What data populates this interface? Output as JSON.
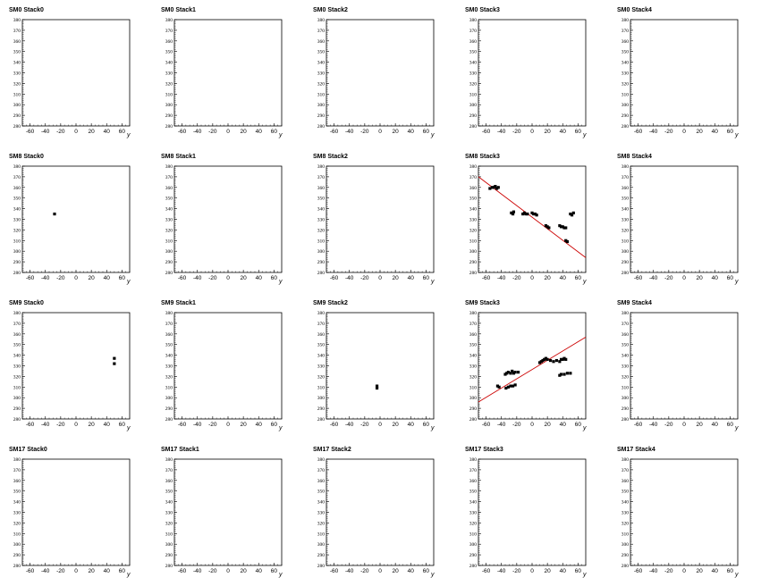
{
  "chart_data": {
    "type": "scatter",
    "layout": {
      "rows": 4,
      "cols": 5
    },
    "xlabel": "y",
    "xlim": [
      -70,
      70
    ],
    "ylim": [
      280,
      380
    ],
    "xticks": [
      -60,
      -40,
      -20,
      0,
      20,
      40,
      60
    ],
    "yticks": [
      280,
      290,
      300,
      310,
      320,
      330,
      340,
      350,
      360,
      370,
      380
    ],
    "marker_color": "#000000",
    "fit_color": "#cc0000",
    "panels": [
      {
        "title": "SM0 Stack0",
        "points": []
      },
      {
        "title": "SM0 Stack1",
        "points": []
      },
      {
        "title": "SM0 Stack2",
        "points": []
      },
      {
        "title": "SM0 Stack3",
        "points": []
      },
      {
        "title": "SM0 Stack4",
        "points": []
      },
      {
        "title": "SM8 Stack0",
        "points": [
          [
            -28,
            335
          ]
        ]
      },
      {
        "title": "SM8 Stack1",
        "points": []
      },
      {
        "title": "SM8 Stack2",
        "points": []
      },
      {
        "title": "SM8 Stack3",
        "points": [
          [
            -55,
            359
          ],
          [
            -52,
            360
          ],
          [
            -50,
            360
          ],
          [
            -48,
            361
          ],
          [
            -46,
            359
          ],
          [
            -44,
            360
          ],
          [
            -27,
            336
          ],
          [
            -25,
            335
          ],
          [
            -24,
            337
          ],
          [
            -12,
            335
          ],
          [
            -10,
            336
          ],
          [
            -8,
            335
          ],
          [
            -6,
            335
          ],
          [
            0,
            336
          ],
          [
            2,
            335
          ],
          [
            4,
            335
          ],
          [
            6,
            334
          ],
          [
            18,
            324
          ],
          [
            20,
            323
          ],
          [
            22,
            322
          ],
          [
            36,
            324
          ],
          [
            38,
            323
          ],
          [
            40,
            323
          ],
          [
            42,
            322
          ],
          [
            44,
            322
          ],
          [
            44,
            310
          ],
          [
            46,
            309
          ],
          [
            50,
            335
          ],
          [
            52,
            334
          ],
          [
            54,
            336
          ]
        ],
        "fit": [
          [
            -70,
            370
          ],
          [
            70,
            294
          ]
        ]
      },
      {
        "title": "SM8 Stack4",
        "points": []
      },
      {
        "title": "SM9 Stack0",
        "points": [
          [
            50,
            337
          ],
          [
            50,
            332
          ]
        ]
      },
      {
        "title": "SM9 Stack1",
        "points": []
      },
      {
        "title": "SM9 Stack2",
        "points": [
          [
            -4,
            311
          ],
          [
            -4,
            309
          ]
        ]
      },
      {
        "title": "SM9 Stack3",
        "points": [
          [
            -45,
            311
          ],
          [
            -43,
            310
          ],
          [
            -35,
            322
          ],
          [
            -33,
            323
          ],
          [
            -31,
            324
          ],
          [
            -28,
            323
          ],
          [
            -26,
            325
          ],
          [
            -24,
            323
          ],
          [
            -22,
            324
          ],
          [
            -18,
            324
          ],
          [
            -34,
            309
          ],
          [
            -31,
            310
          ],
          [
            -28,
            311
          ],
          [
            -25,
            311
          ],
          [
            -22,
            312
          ],
          [
            10,
            333
          ],
          [
            12,
            334
          ],
          [
            14,
            335
          ],
          [
            16,
            336
          ],
          [
            18,
            337
          ],
          [
            20,
            336
          ],
          [
            24,
            335
          ],
          [
            28,
            334
          ],
          [
            32,
            335
          ],
          [
            36,
            334
          ],
          [
            38,
            336
          ],
          [
            40,
            336
          ],
          [
            42,
            337
          ],
          [
            44,
            336
          ],
          [
            36,
            321
          ],
          [
            38,
            322
          ],
          [
            42,
            322
          ],
          [
            46,
            323
          ],
          [
            50,
            323
          ]
        ],
        "fit": [
          [
            -70,
            296
          ],
          [
            70,
            357
          ]
        ]
      },
      {
        "title": "SM9 Stack4",
        "points": []
      },
      {
        "title": "SM17 Stack0",
        "points": []
      },
      {
        "title": "SM17 Stack1",
        "points": []
      },
      {
        "title": "SM17 Stack2",
        "points": []
      },
      {
        "title": "SM17 Stack3",
        "points": []
      },
      {
        "title": "SM17 Stack4",
        "points": []
      }
    ]
  }
}
